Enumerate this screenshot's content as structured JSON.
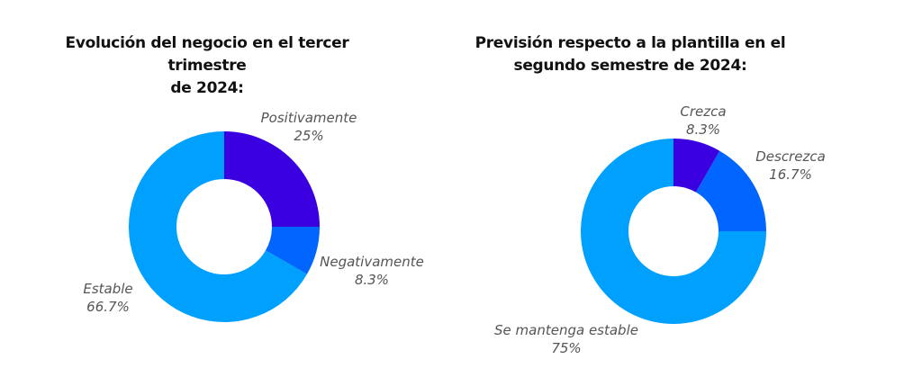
{
  "charts": {
    "left": {
      "title": "Evolución del negocio en el tercer trimestre de 2024:",
      "title_line1": "Evolución del negocio en el tercer trimestre",
      "title_line2": "de 2024:",
      "slices": [
        {
          "label": "Positivamente",
          "value_text": "25%",
          "color": "#3A00E0"
        },
        {
          "label": "Negativamente",
          "value_text": "8.3%",
          "color": "#0066FF"
        },
        {
          "label": "Estable",
          "value_text": "66.7%",
          "color": "#00A0FF"
        }
      ]
    },
    "right": {
      "title": "Previsión respecto a la plantilla en el segundo semestre de 2024:",
      "title_line1": "Previsión respecto a la plantilla en el",
      "title_line2": "segundo semestre de 2024:",
      "slices": [
        {
          "label": "Crezca",
          "value_text": "8.3%",
          "color": "#3A00E0"
        },
        {
          "label": "Descrezca",
          "value_text": "16.7%",
          "color": "#0066FF"
        },
        {
          "label": "Se mantenga estable",
          "value_text": "75%",
          "color": "#00A0FF"
        }
      ]
    }
  },
  "chart_data": [
    {
      "type": "pie",
      "variant": "donut",
      "title": "Evolución del negocio en el tercer trimestre de 2024:",
      "categories": [
        "Positivamente",
        "Negativamente",
        "Estable"
      ],
      "values": [
        25,
        8.3,
        66.7
      ],
      "unit": "%",
      "colors": [
        "#3A00E0",
        "#0066FF",
        "#00A0FF"
      ],
      "start_angle": "12 o'clock, clockwise",
      "legend": "none (direct labels)"
    },
    {
      "type": "pie",
      "variant": "donut",
      "title": "Previsión respecto a la plantilla en el segundo semestre de 2024:",
      "categories": [
        "Crezca",
        "Descrezca",
        "Se mantenga estable"
      ],
      "values": [
        8.3,
        16.7,
        75
      ],
      "unit": "%",
      "colors": [
        "#3A00E0",
        "#0066FF",
        "#00A0FF"
      ],
      "start_angle": "12 o'clock, clockwise",
      "legend": "none (direct labels)"
    }
  ]
}
